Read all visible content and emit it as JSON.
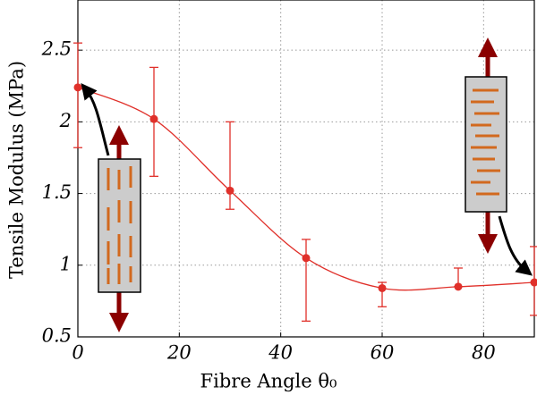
{
  "chart_data": {
    "type": "line",
    "xlabel": "Fibre Angle θ₀",
    "ylabel": "Tensile Modulus (MPa)",
    "x": [
      0,
      15,
      30,
      45,
      60,
      75,
      90
    ],
    "series": [
      {
        "color": "#e0302a",
        "values": [
          2.24,
          2.02,
          1.52,
          1.05,
          0.84,
          0.85,
          0.88
        ],
        "err_plus": [
          0.31,
          0.36,
          0.48,
          0.13,
          0.04,
          0.13,
          0.25
        ],
        "err_minus": [
          0.42,
          0.4,
          0.13,
          0.44,
          0.13,
          0,
          0.23
        ]
      }
    ],
    "xlim": [
      0,
      90
    ],
    "ylim": [
      0.5,
      2.85
    ],
    "xticks": [
      0,
      20,
      40,
      60,
      80
    ],
    "yticks": [
      0.5,
      1,
      1.5,
      2,
      2.5
    ],
    "grid": true
  }
}
